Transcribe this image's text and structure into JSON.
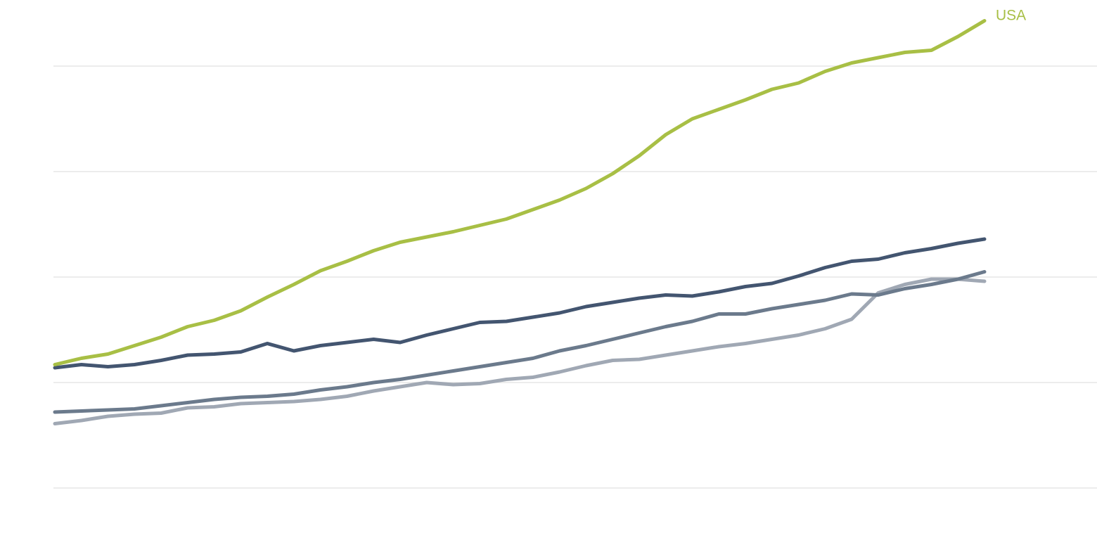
{
  "chart_data": {
    "type": "line",
    "title": "",
    "xlabel": "",
    "ylabel": "",
    "grid": true,
    "legend": "none",
    "y_gridlines": [
      0,
      1,
      2,
      3,
      4
    ],
    "ylim": [
      0,
      4.36
    ],
    "x": [
      0,
      1,
      2,
      3,
      4,
      5,
      6,
      7,
      8,
      9,
      10,
      11,
      12,
      13,
      14,
      15,
      16,
      17,
      18,
      19,
      20,
      21,
      22,
      23,
      24,
      25,
      26,
      27,
      28,
      29,
      30,
      31,
      32,
      33,
      34,
      35
    ],
    "xlim": [
      0,
      35
    ],
    "series": [
      {
        "name": "USA",
        "labeled": true,
        "color": "#a8bf45",
        "values": [
          1.17,
          1.23,
          1.27,
          1.35,
          1.43,
          1.53,
          1.59,
          1.68,
          1.81,
          1.93,
          2.06,
          2.15,
          2.25,
          2.33,
          2.38,
          2.43,
          2.49,
          2.55,
          2.64,
          2.73,
          2.84,
          2.98,
          3.15,
          3.35,
          3.5,
          3.59,
          3.68,
          3.78,
          3.84,
          3.95,
          4.03,
          4.08,
          4.13,
          4.15,
          4.28,
          4.43
        ]
      },
      {
        "name": "",
        "labeled": false,
        "color": "#435570",
        "values": [
          1.14,
          1.17,
          1.15,
          1.17,
          1.21,
          1.26,
          1.27,
          1.29,
          1.37,
          1.3,
          1.35,
          1.38,
          1.41,
          1.38,
          1.45,
          1.51,
          1.57,
          1.58,
          1.62,
          1.66,
          1.72,
          1.76,
          1.8,
          1.83,
          1.82,
          1.86,
          1.91,
          1.94,
          2.01,
          2.09,
          2.15,
          2.17,
          2.23,
          2.27,
          2.32,
          2.36
        ]
      },
      {
        "name": "",
        "labeled": false,
        "color": "#6b7a8c",
        "values": [
          0.72,
          0.73,
          0.74,
          0.75,
          0.78,
          0.81,
          0.84,
          0.86,
          0.87,
          0.89,
          0.93,
          0.96,
          1.0,
          1.03,
          1.07,
          1.11,
          1.15,
          1.19,
          1.23,
          1.3,
          1.35,
          1.41,
          1.47,
          1.53,
          1.58,
          1.65,
          1.65,
          1.7,
          1.74,
          1.78,
          1.84,
          1.83,
          1.89,
          1.93,
          1.98,
          2.05
        ]
      },
      {
        "name": "",
        "labeled": false,
        "color": "#a0a8b4",
        "values": [
          0.61,
          0.64,
          0.68,
          0.7,
          0.71,
          0.76,
          0.77,
          0.8,
          0.81,
          0.82,
          0.84,
          0.87,
          0.92,
          0.96,
          1.0,
          0.98,
          0.99,
          1.03,
          1.05,
          1.1,
          1.16,
          1.21,
          1.22,
          1.26,
          1.3,
          1.34,
          1.37,
          1.41,
          1.45,
          1.51,
          1.6,
          1.85,
          1.93,
          1.98,
          1.98,
          1.96
        ]
      }
    ]
  }
}
